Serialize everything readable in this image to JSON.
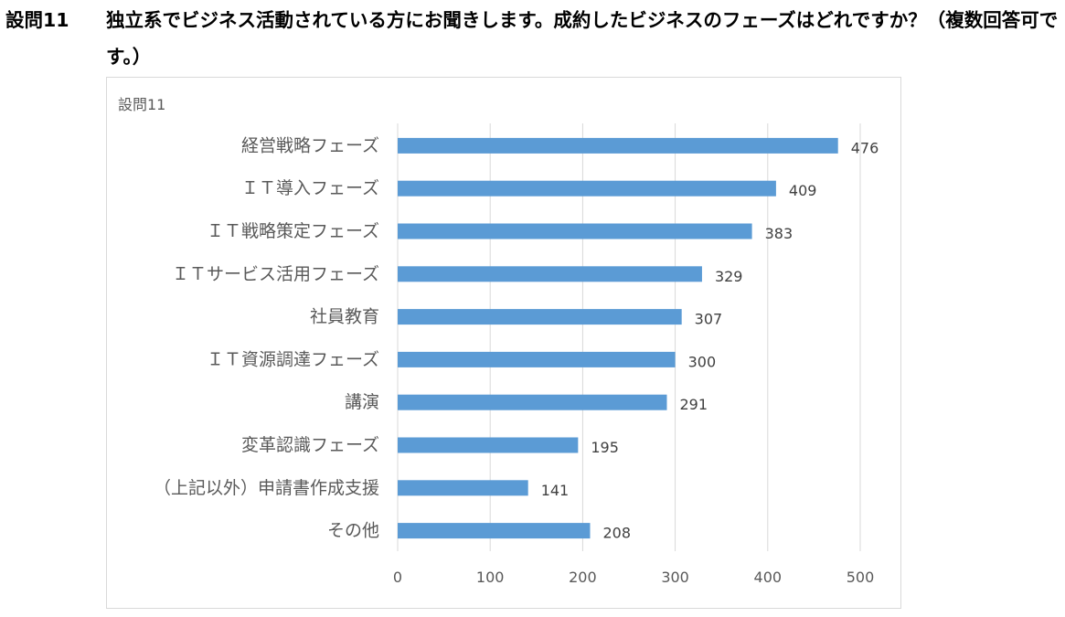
{
  "question": {
    "label": "設問11",
    "text": "独立系でビジネス活動されている方にお聞きします。成約したビジネスのフェーズはどれですか？（複数回答可です。）"
  },
  "colors": {
    "bar": "#5b9bd5",
    "grid": "#d9d9d9",
    "text": "#595959",
    "data_label": "#404040"
  },
  "chart_data": {
    "type": "bar",
    "orientation": "horizontal",
    "title": "設問11",
    "categories": [
      "経営戦略フェーズ",
      "ＩＴ導入フェーズ",
      "ＩＴ戦略策定フェーズ",
      "ＩＴサービス活用フェーズ",
      "社員教育",
      "ＩＴ資源調達フェーズ",
      "講演",
      "変革認識フェーズ",
      "（上記以外）申請書作成支援",
      "その他"
    ],
    "values": [
      476,
      409,
      383,
      329,
      307,
      300,
      291,
      195,
      141,
      208
    ],
    "xlim": [
      0,
      500
    ],
    "xticks": [
      0,
      100,
      200,
      300,
      400,
      500
    ],
    "grid": true,
    "legend": "none",
    "data_labels": true
  }
}
